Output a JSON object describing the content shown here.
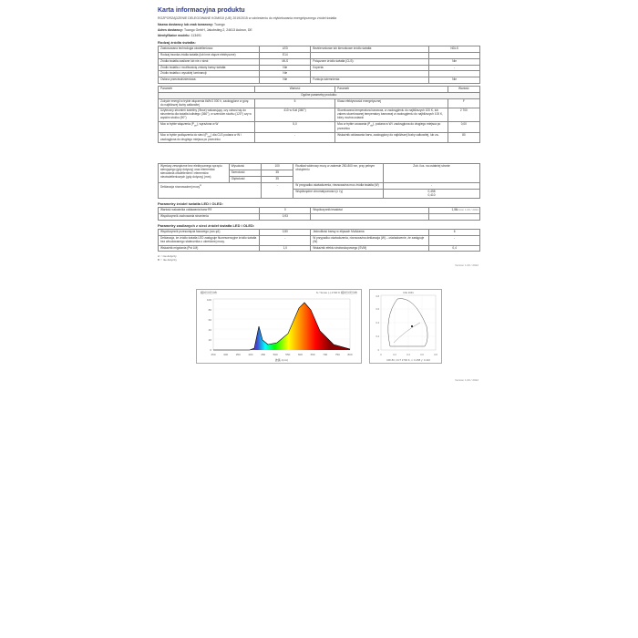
{
  "title": "Karta informacyjna produktu",
  "intro": "ROZPORZĄDZENIE DELEGOWANE KOMISJI (UE) 2019/2015 w odniesieniu do etykietowania energetycznego źródeł światła",
  "meta": {
    "supplier_label": "Nazwa dostawcy lub znak towarowy:",
    "supplier": "Tuango",
    "address_label": "Adres dostawcy:",
    "address": "Tuango GmbH, Jakobstieg 2, 24613 Aukrun, DE",
    "model_label": "Identyfikator modelu:",
    "model": "113491"
  },
  "section1_title": "Rodzaj źródła światła:",
  "tbl1": [
    [
      "Zastosowana technologia oświetleniowa:",
      "LED",
      "Bezkierunkowe lub kierunkowe źródło światła:",
      "NDLS"
    ],
    [
      "Rodzaj trzonka źródła światła (lub inne złącze elektryczne)",
      "E14",
      "",
      ""
    ],
    [
      "Źródła światła zasilane lub nie z sieci:",
      "MLS",
      "Połączone źródło światła (CLS):",
      "Nie"
    ],
    [
      "Źródło światła z możliwością zmiany barwy światła:",
      "Nie",
      "Koperta:",
      "-"
    ],
    [
      "Źródło światła o wysokiej luminancji:",
      "Nie",
      "",
      ""
    ],
    [
      "Osłona przeciwolśnieniowa:",
      "Nie",
      "Funkcja ściemnienia:",
      "Nie"
    ]
  ],
  "tbl2_header": [
    "Parametr",
    "Wartość",
    "Parametr",
    "Wartość"
  ],
  "tbl2_sub": "Ogólne parametry produktu:",
  "tbl2": [
    [
      "Zużycie energii w trybie włączenia kWh/1 000 h, zaokrąglone w górę do najbliższej liczby całkowitej",
      "5",
      "Klasa efektywności energetycznej",
      "F"
    ],
    [
      "Użyteczny strumień świetlny (Φuse) wskazujący, czy odnosi się do strumienia dla światła kulistego (360°), w szerokim stożku (120°) czy w wąskim stożku (90°)",
      "410 w Kuli (360°)",
      "Skorelowana temperatura barwowa, w zaokrągleniu do najbliższych 100 K, lub zakres skorelowanej temperatury barwowej w zaokrągleniu do najbliższych 100 K, który można ustawić",
      "2 700"
    ],
    [
      "Moc w trybie włączenia (P<sub>on</sub>), wyrażona w W",
      "5,0",
      "Moc w trybie czuwania (P<sub>sb</sub>), podana w W i zaokrąglona do drugiego miejsca po przecinku",
      "0,00"
    ],
    [
      "Moc w trybie podłączenia do sieci (P<sub>net</sub>) dla CLS podana w W i zaokrąglona do drugiego miejsca po przecinku",
      "-",
      "Wskaźnik oddawania barw, zaokrąglony do najbliższej liczby całkowitej, lub za-",
      "80"
    ]
  ],
  "tbl3": [
    [
      "Wymiary zewnętrzne bez elektrycznego sprzętu sterującego (gdy dotyczy) oraz elementów sterowania oświetleniem i elementów nieoświetleniowych (gdy dotyczy) (mm)",
      "Wysokość",
      "100",
      "Rozkład widmowy mocy w zakresie 250-800 nm, przy pełnym obciążeniu",
      "Zob. ilus. na ostatniej stronie"
    ],
    [
      "",
      "Szerokość",
      "35",
      "",
      ""
    ],
    [
      "",
      "Głębokość",
      "35",
      "",
      ""
    ],
    [
      "Deklaracja równoważnej mocy<sup>A</sup>",
      "-",
      "W przypadku oświadczenia, równoważna moc źródła światła (W)",
      "-"
    ],
    [
      "",
      "",
      "Współrzędne chromatyczności (x i y)",
      "0,458\n0,410"
    ]
  ],
  "sec_led": "Parametry źródeł światła LED i OLED:",
  "tbl4": [
    [
      "Wartość wskaźnika oddawania barw R9",
      "0",
      "Współczynnik trwałości",
      "1,00"
    ],
    [
      "Współczynnik zachowania strumienia",
      "0,93",
      "",
      ""
    ]
  ],
  "sec_mains": "Parametry zasilanych z sieci źródeł światła LED i OLED:",
  "tbl5": [
    [
      "Współczynnik przesunięcia fazowego (cos φ1)",
      "0,50",
      "Jednolitość barwy w elipsach McAdama",
      "6"
    ],
    [
      "Deklaracja, że źródło światła LED zastępuje fluorescencyjne źródło światła bez wbudowanego statecznika o określonej mocy.",
      "-",
      "W przypadku oświadczenia, równoważna deklaracja (W) – oświadczenie, że zastępuje (W)",
      "-"
    ],
    [
      "Wskaźnik migotania (Pst LM)",
      "1,0",
      "Wskaźnik efektu stroboskopowego (SVM)",
      "0,4"
    ]
  ],
  "footnotes": [
    "A '-' nie dotyczy",
    "B '-' nie dotyczy"
  ],
  "version": "Version 1.00 / 2022",
  "spectral": {
    "title_left": "相対分光分布",
    "title_right": "S / Smax (-)   2700 K   相対分光分布",
    "xlabel": "波長 λ(nm)",
    "xticks": [
      "250",
      "300",
      "350",
      "400",
      "450",
      "500",
      "550",
      "600",
      "650",
      "700",
      "750",
      "800"
    ],
    "yticks": [
      "0",
      "20",
      "40",
      "60",
      "80",
      "100"
    ],
    "bg_gradient": [
      "#8a2be2",
      "#3f48cc",
      "#00ffff",
      "#00ff00",
      "#ffff00",
      "#ff8000",
      "#ff0000",
      "#8b0000"
    ],
    "peak_x": 620,
    "blue_peak_x": 450
  },
  "cie": {
    "note": "CRI 80, CCT 2700 K, x: 0.458 y: 0.410",
    "xlabel": "x",
    "ylabel": "y",
    "ticks": [
      "0",
      "0.1",
      "0.2",
      "0.3",
      "0.4",
      "0.5",
      "0.6",
      "0.7",
      "0.8"
    ]
  }
}
